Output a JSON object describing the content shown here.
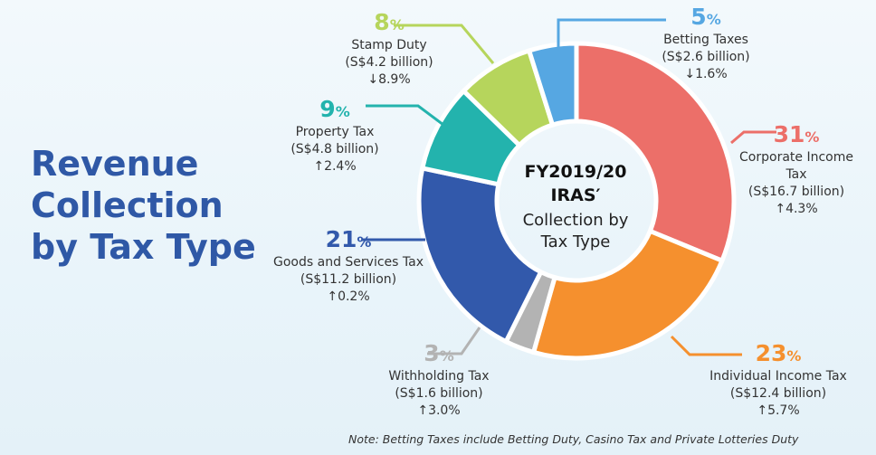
{
  "title_lines": [
    "Revenue",
    "Collection",
    "by Tax Type"
  ],
  "note": "Note: Betting Taxes include Betting Duty, Casino Tax and Private Lotteries Duty",
  "chart_data": {
    "type": "pie",
    "donut": true,
    "center_label": {
      "line1": "FY2019/20",
      "line2": "IRAS′",
      "line3": "Collection by",
      "line4": "Tax Type"
    },
    "slices": [
      {
        "name": "Corporate Income Tax",
        "percent": "31",
        "amount": "(S$16.7 billion)",
        "value": 16.7,
        "change": "4.3%",
        "direction": "up",
        "color": "#ec6f69"
      },
      {
        "name": "Individual Income Tax",
        "percent": "23",
        "amount": "(S$12.4 billion)",
        "value": 12.4,
        "change": "5.7%",
        "direction": "up",
        "color": "#f5902e"
      },
      {
        "name": "Withholding Tax",
        "percent": "3",
        "amount": "(S$1.6 billion)",
        "value": 1.6,
        "change": "3.0%",
        "direction": "up",
        "color": "#b3b3b3"
      },
      {
        "name": "Goods and Services Tax",
        "percent": "21",
        "amount": "(S$11.2 billion)",
        "value": 11.2,
        "change": "0.2%",
        "direction": "up",
        "color": "#3259ab"
      },
      {
        "name": "Property Tax",
        "percent": "9",
        "amount": "(S$4.8 billion)",
        "value": 4.8,
        "change": "2.4%",
        "direction": "up",
        "color": "#23b3ad"
      },
      {
        "name": "Stamp Duty",
        "percent": "8",
        "amount": "(S$4.2 billion)",
        "value": 4.2,
        "change": "8.9%",
        "direction": "down",
        "color": "#b6d55c"
      },
      {
        "name": "Betting Taxes",
        "percent": "5",
        "amount": "(S$2.6 billion)",
        "value": 2.6,
        "change": "1.6%",
        "direction": "down",
        "color": "#56a7e2"
      }
    ]
  }
}
